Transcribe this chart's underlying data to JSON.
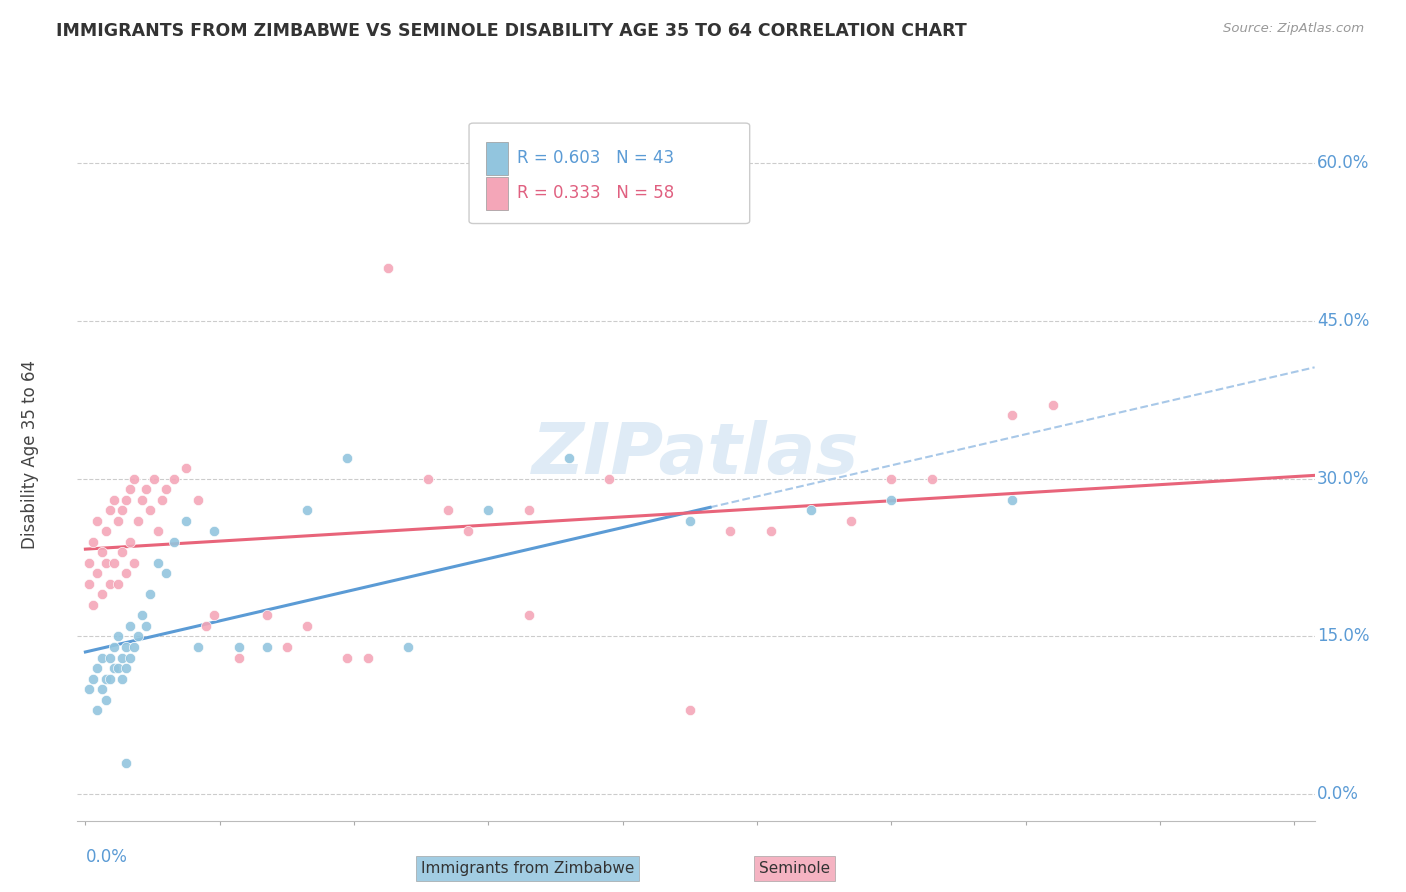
{
  "title": "IMMIGRANTS FROM ZIMBABWE VS SEMINOLE DISABILITY AGE 35 TO 64 CORRELATION CHART",
  "source": "Source: ZipAtlas.com",
  "ylabel": "Disability Age 35 to 64",
  "ytick_values": [
    0.0,
    0.15,
    0.3,
    0.45,
    0.6
  ],
  "xlim": [
    -0.002,
    0.305
  ],
  "ylim": [
    -0.025,
    0.67
  ],
  "legend1_r": "R = 0.603",
  "legend1_n": "N = 43",
  "legend2_r": "R = 0.333",
  "legend2_n": "N = 58",
  "color_blue": "#92c5de",
  "color_pink": "#f4a6b8",
  "color_blue_line": "#5b9bd5",
  "color_pink_line": "#e8647a",
  "color_blue_dash": "#a8c8e8",
  "color_title": "#333333",
  "color_source": "#999999",
  "color_axis_blue": "#5b9bd5",
  "watermark": "ZIPatlas",
  "blue_dots_x": [
    0.001,
    0.002,
    0.003,
    0.003,
    0.004,
    0.004,
    0.005,
    0.005,
    0.006,
    0.006,
    0.007,
    0.007,
    0.008,
    0.008,
    0.009,
    0.009,
    0.01,
    0.01,
    0.011,
    0.011,
    0.012,
    0.013,
    0.014,
    0.015,
    0.016,
    0.018,
    0.02,
    0.022,
    0.025,
    0.028,
    0.032,
    0.038,
    0.045,
    0.055,
    0.065,
    0.08,
    0.1,
    0.12,
    0.15,
    0.18,
    0.2,
    0.23,
    0.01
  ],
  "blue_dots_y": [
    0.1,
    0.11,
    0.08,
    0.12,
    0.1,
    0.13,
    0.09,
    0.11,
    0.11,
    0.13,
    0.12,
    0.14,
    0.12,
    0.15,
    0.11,
    0.13,
    0.12,
    0.14,
    0.13,
    0.16,
    0.14,
    0.15,
    0.17,
    0.16,
    0.19,
    0.22,
    0.21,
    0.24,
    0.26,
    0.14,
    0.25,
    0.14,
    0.14,
    0.27,
    0.32,
    0.14,
    0.27,
    0.32,
    0.26,
    0.27,
    0.28,
    0.28,
    0.03
  ],
  "pink_dots_x": [
    0.001,
    0.001,
    0.002,
    0.002,
    0.003,
    0.003,
    0.004,
    0.004,
    0.005,
    0.005,
    0.006,
    0.006,
    0.007,
    0.007,
    0.008,
    0.008,
    0.009,
    0.009,
    0.01,
    0.01,
    0.011,
    0.011,
    0.012,
    0.012,
    0.013,
    0.014,
    0.015,
    0.016,
    0.017,
    0.018,
    0.019,
    0.02,
    0.022,
    0.025,
    0.028,
    0.032,
    0.038,
    0.045,
    0.055,
    0.065,
    0.075,
    0.085,
    0.095,
    0.11,
    0.13,
    0.15,
    0.17,
    0.19,
    0.21,
    0.23,
    0.03,
    0.05,
    0.07,
    0.09,
    0.11,
    0.16,
    0.2,
    0.24
  ],
  "pink_dots_y": [
    0.2,
    0.22,
    0.18,
    0.24,
    0.21,
    0.26,
    0.19,
    0.23,
    0.22,
    0.25,
    0.2,
    0.27,
    0.22,
    0.28,
    0.2,
    0.26,
    0.23,
    0.27,
    0.21,
    0.28,
    0.24,
    0.29,
    0.22,
    0.3,
    0.26,
    0.28,
    0.29,
    0.27,
    0.3,
    0.25,
    0.28,
    0.29,
    0.3,
    0.31,
    0.28,
    0.17,
    0.13,
    0.17,
    0.16,
    0.13,
    0.5,
    0.3,
    0.25,
    0.17,
    0.3,
    0.08,
    0.25,
    0.26,
    0.3,
    0.36,
    0.16,
    0.14,
    0.13,
    0.27,
    0.27,
    0.25,
    0.3,
    0.37
  ]
}
